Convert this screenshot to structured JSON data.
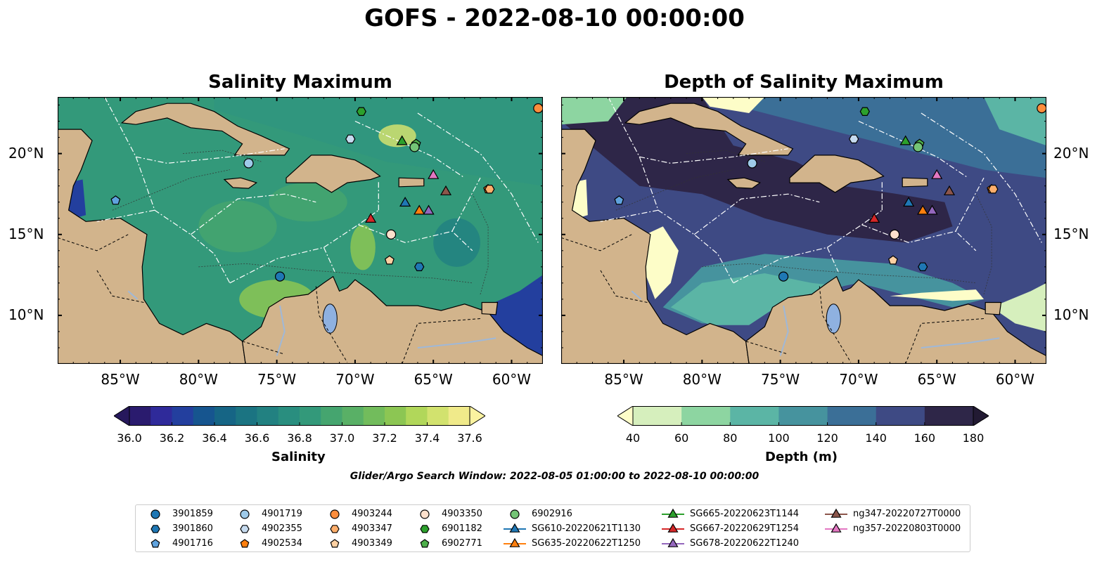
{
  "figure": {
    "title": "GOFS - 2022-08-10 00:00:00",
    "search_window": "Glider/Argo Search Window: 2022-08-05 01:00:00 to 2022-08-10 00:00:00"
  },
  "panels": [
    {
      "title": "Salinity Maximum",
      "colorbar_label": "Salinity"
    },
    {
      "title": "Depth of Salinity Maximum",
      "colorbar_label": "Depth (m)"
    }
  ],
  "axes": {
    "lon_range": [
      -89,
      -58
    ],
    "lat_range": [
      7,
      23.5
    ],
    "lon_ticks": [
      -85,
      -80,
      -75,
      -70,
      -65,
      -60
    ],
    "lon_tick_labels": [
      "85°W",
      "80°W",
      "75°W",
      "70°W",
      "65°W",
      "60°W"
    ],
    "lat_ticks": [
      10,
      15,
      20
    ],
    "lat_tick_labels": [
      "10°N",
      "15°N",
      "20°N"
    ]
  },
  "colorbars": {
    "salinity": {
      "ticks": [
        "36.0",
        "36.2",
        "36.4",
        "36.6",
        "36.8",
        "37.0",
        "37.2",
        "37.4",
        "37.6"
      ],
      "range": [
        36.0,
        37.6
      ],
      "colors": [
        "#2a1b6e",
        "#2f2a9a",
        "#233f9e",
        "#16558f",
        "#166585",
        "#1b7482",
        "#228181",
        "#298e7f",
        "#33997a",
        "#45a56f",
        "#59b066",
        "#72bc5c",
        "#8cc653",
        "#b1d75a",
        "#d2e26e",
        "#f0ea8a"
      ],
      "extend_low": "#26185c",
      "extend_high": "#fbf3a0"
    },
    "depth": {
      "ticks": [
        "40",
        "60",
        "80",
        "100",
        "120",
        "140",
        "160",
        "180"
      ],
      "range": [
        40,
        180
      ],
      "colors": [
        "#d6efbd",
        "#8dd5a1",
        "#5bb5a5",
        "#46939e",
        "#3b6f97",
        "#3e4a84",
        "#2e2648"
      ],
      "extend_low": "#fdfdc8",
      "extend_high": "#221a33"
    }
  },
  "markers": [
    {
      "label": "3901859",
      "shape": "circle",
      "color": "#1f77b4",
      "lon": -74.8,
      "lat": 12.4
    },
    {
      "label": "3901860",
      "shape": "hexagon",
      "color": "#1f77b4",
      "lon": -65.9,
      "lat": 13.0
    },
    {
      "label": "4901716",
      "shape": "pentagon",
      "color": "#5fa2dd",
      "lon": -85.3,
      "lat": 17.1
    },
    {
      "label": "4901719",
      "shape": "circle",
      "color": "#9ecae9",
      "lon": -76.8,
      "lat": 19.4
    },
    {
      "label": "4902355",
      "shape": "hexagon",
      "color": "#c6dbef",
      "lon": -70.3,
      "lat": 20.9
    },
    {
      "label": "4902534",
      "shape": "pentagon",
      "color": "#ff7f0e",
      "lon": -61.5,
      "lat": 17.8
    },
    {
      "label": "4903244",
      "shape": "circle",
      "color": "#fd8d3c",
      "lon": -58.3,
      "lat": 22.8
    },
    {
      "label": "4903347",
      "shape": "hexagon",
      "color": "#fdae6b",
      "lon": -61.4,
      "lat": 17.8
    },
    {
      "label": "4903349",
      "shape": "pentagon",
      "color": "#fdd0a2",
      "lon": -67.8,
      "lat": 13.4
    },
    {
      "label": "4903350",
      "shape": "circle",
      "color": "#fde0cc",
      "lon": -67.7,
      "lat": 15.0
    },
    {
      "label": "6901182",
      "shape": "hexagon",
      "color": "#2ca02c",
      "lon": -69.6,
      "lat": 22.6
    },
    {
      "label": "6902771",
      "shape": "pentagon",
      "color": "#4daf4a",
      "lon": -66.1,
      "lat": 20.6
    },
    {
      "label": "6902916",
      "shape": "circle",
      "color": "#74c476",
      "lon": -66.2,
      "lat": 20.4
    },
    {
      "label": "SG610-20220621T1130",
      "shape": "triangle",
      "color": "#1f77b4",
      "lon": -66.8,
      "lat": 17.0,
      "line": true
    },
    {
      "label": "SG635-20220622T1250",
      "shape": "triangle",
      "color": "#ff7f0e",
      "lon": -65.9,
      "lat": 16.5,
      "line": true
    },
    {
      "label": "SG665-20220623T1144",
      "shape": "triangle",
      "color": "#2ca02c",
      "lon": -67.0,
      "lat": 20.8,
      "line": true
    },
    {
      "label": "SG667-20220629T1254",
      "shape": "triangle",
      "color": "#d62728",
      "lon": -69.0,
      "lat": 16.0,
      "line": true
    },
    {
      "label": "SG678-20220622T1240",
      "shape": "triangle",
      "color": "#9467bd",
      "lon": -65.3,
      "lat": 16.5,
      "line": true
    },
    {
      "label": "ng347-20220727T0000",
      "shape": "triangle",
      "color": "#8c564b",
      "lon": -64.2,
      "lat": 17.7,
      "line": true
    },
    {
      "label": "ng357-20220803T0000",
      "shape": "triangle",
      "color": "#e377c2",
      "lon": -65.0,
      "lat": 18.7,
      "line": true
    }
  ]
}
